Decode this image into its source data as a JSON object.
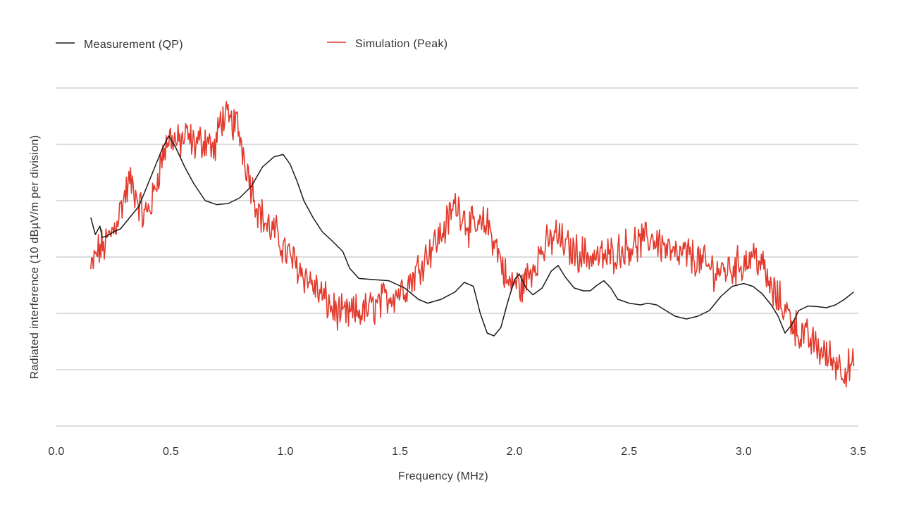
{
  "chart_data": {
    "type": "line",
    "xlabel": "Frequency (MHz)",
    "ylabel": "Radiated interference (10 dBµV/m per division)",
    "xlim": [
      0.0,
      3.5
    ],
    "x_ticks": [
      "0.0",
      "0.5",
      "1.0",
      "1.5",
      "2.0",
      "2.5",
      "3.0",
      "3.5"
    ],
    "ylim": [
      0,
      6
    ],
    "y_units": "divisions (10 dBµV/m each), measured from bottom gridline",
    "grid": "horizontal",
    "legend_position": "top-left",
    "series": [
      {
        "name": "Measurement (QP)",
        "color": "#1a1a1a",
        "style": "smooth",
        "points": [
          [
            0.15,
            3.7
          ],
          [
            0.17,
            3.4
          ],
          [
            0.19,
            3.55
          ],
          [
            0.2,
            3.35
          ],
          [
            0.22,
            3.37
          ],
          [
            0.25,
            3.45
          ],
          [
            0.28,
            3.5
          ],
          [
            0.32,
            3.7
          ],
          [
            0.36,
            3.9
          ],
          [
            0.4,
            4.3
          ],
          [
            0.43,
            4.6
          ],
          [
            0.46,
            4.9
          ],
          [
            0.49,
            5.15
          ],
          [
            0.52,
            4.95
          ],
          [
            0.56,
            4.6
          ],
          [
            0.6,
            4.3
          ],
          [
            0.65,
            4.0
          ],
          [
            0.7,
            3.93
          ],
          [
            0.75,
            3.95
          ],
          [
            0.8,
            4.05
          ],
          [
            0.85,
            4.25
          ],
          [
            0.9,
            4.6
          ],
          [
            0.95,
            4.78
          ],
          [
            0.99,
            4.82
          ],
          [
            1.02,
            4.65
          ],
          [
            1.05,
            4.35
          ],
          [
            1.08,
            4.0
          ],
          [
            1.12,
            3.7
          ],
          [
            1.16,
            3.45
          ],
          [
            1.2,
            3.3
          ],
          [
            1.25,
            3.1
          ],
          [
            1.28,
            2.8
          ],
          [
            1.32,
            2.62
          ],
          [
            1.38,
            2.6
          ],
          [
            1.45,
            2.58
          ],
          [
            1.52,
            2.45
          ],
          [
            1.58,
            2.25
          ],
          [
            1.62,
            2.18
          ],
          [
            1.68,
            2.25
          ],
          [
            1.74,
            2.38
          ],
          [
            1.78,
            2.55
          ],
          [
            1.82,
            2.48
          ],
          [
            1.85,
            2.0
          ],
          [
            1.88,
            1.65
          ],
          [
            1.91,
            1.6
          ],
          [
            1.94,
            1.75
          ],
          [
            1.97,
            2.2
          ],
          [
            2.0,
            2.6
          ],
          [
            2.02,
            2.7
          ],
          [
            2.05,
            2.45
          ],
          [
            2.08,
            2.33
          ],
          [
            2.12,
            2.45
          ],
          [
            2.16,
            2.75
          ],
          [
            2.19,
            2.85
          ],
          [
            2.22,
            2.65
          ],
          [
            2.26,
            2.45
          ],
          [
            2.3,
            2.4
          ],
          [
            2.33,
            2.4
          ],
          [
            2.36,
            2.5
          ],
          [
            2.39,
            2.58
          ],
          [
            2.42,
            2.45
          ],
          [
            2.45,
            2.25
          ],
          [
            2.5,
            2.18
          ],
          [
            2.55,
            2.15
          ],
          [
            2.58,
            2.18
          ],
          [
            2.62,
            2.15
          ],
          [
            2.66,
            2.05
          ],
          [
            2.7,
            1.95
          ],
          [
            2.75,
            1.9
          ],
          [
            2.8,
            1.95
          ],
          [
            2.85,
            2.05
          ],
          [
            2.9,
            2.3
          ],
          [
            2.95,
            2.48
          ],
          [
            3.0,
            2.53
          ],
          [
            3.04,
            2.48
          ],
          [
            3.08,
            2.35
          ],
          [
            3.12,
            2.15
          ],
          [
            3.15,
            1.95
          ],
          [
            3.18,
            1.65
          ],
          [
            3.21,
            1.8
          ],
          [
            3.24,
            2.05
          ],
          [
            3.28,
            2.13
          ],
          [
            3.32,
            2.12
          ],
          [
            3.36,
            2.1
          ],
          [
            3.4,
            2.15
          ],
          [
            3.44,
            2.25
          ],
          [
            3.48,
            2.38
          ]
        ]
      },
      {
        "name": "Simulation (Peak)",
        "color": "#e23b2e",
        "style": "noisy",
        "points": [
          [
            0.15,
            2.75
          ],
          [
            0.18,
            3.1
          ],
          [
            0.21,
            3.2
          ],
          [
            0.25,
            3.5
          ],
          [
            0.28,
            3.85
          ],
          [
            0.3,
            4.1
          ],
          [
            0.32,
            4.35
          ],
          [
            0.35,
            4.1
          ],
          [
            0.38,
            3.7
          ],
          [
            0.42,
            4.0
          ],
          [
            0.45,
            4.6
          ],
          [
            0.48,
            5.0
          ],
          [
            0.5,
            5.15
          ],
          [
            0.53,
            5.0
          ],
          [
            0.57,
            5.15
          ],
          [
            0.6,
            5.0
          ],
          [
            0.63,
            5.05
          ],
          [
            0.66,
            5.1
          ],
          [
            0.69,
            4.85
          ],
          [
            0.72,
            5.5
          ],
          [
            0.75,
            5.4
          ],
          [
            0.79,
            5.35
          ],
          [
            0.82,
            4.8
          ],
          [
            0.85,
            4.3
          ],
          [
            0.88,
            3.85
          ],
          [
            0.92,
            3.55
          ],
          [
            0.96,
            3.4
          ],
          [
            1.0,
            3.1
          ],
          [
            1.04,
            2.9
          ],
          [
            1.08,
            2.7
          ],
          [
            1.12,
            2.5
          ],
          [
            1.16,
            2.3
          ],
          [
            1.2,
            2.1
          ],
          [
            1.25,
            1.95
          ],
          [
            1.3,
            2.0
          ],
          [
            1.35,
            2.05
          ],
          [
            1.4,
            2.15
          ],
          [
            1.45,
            2.3
          ],
          [
            1.5,
            2.4
          ],
          [
            1.55,
            2.6
          ],
          [
            1.6,
            2.95
          ],
          [
            1.64,
            3.2
          ],
          [
            1.68,
            3.4
          ],
          [
            1.71,
            3.65
          ],
          [
            1.74,
            3.95
          ],
          [
            1.77,
            3.8
          ],
          [
            1.8,
            3.55
          ],
          [
            1.84,
            3.5
          ],
          [
            1.88,
            3.6
          ],
          [
            1.91,
            3.3
          ],
          [
            1.94,
            2.95
          ],
          [
            1.97,
            2.5
          ],
          [
            2.0,
            2.55
          ],
          [
            2.03,
            2.45
          ],
          [
            2.07,
            2.75
          ],
          [
            2.1,
            3.0
          ],
          [
            2.14,
            3.2
          ],
          [
            2.18,
            3.4
          ],
          [
            2.22,
            3.2
          ],
          [
            2.26,
            3.1
          ],
          [
            2.3,
            3.05
          ],
          [
            2.35,
            3.0
          ],
          [
            2.4,
            3.0
          ],
          [
            2.45,
            3.1
          ],
          [
            2.5,
            3.2
          ],
          [
            2.55,
            3.25
          ],
          [
            2.6,
            3.35
          ],
          [
            2.65,
            3.2
          ],
          [
            2.7,
            3.0
          ],
          [
            2.75,
            3.05
          ],
          [
            2.8,
            2.95
          ],
          [
            2.85,
            2.8
          ],
          [
            2.9,
            2.75
          ],
          [
            2.95,
            2.8
          ],
          [
            3.0,
            2.9
          ],
          [
            3.05,
            3.05
          ],
          [
            3.08,
            2.85
          ],
          [
            3.12,
            2.4
          ],
          [
            3.16,
            2.2
          ],
          [
            3.2,
            1.95
          ],
          [
            3.24,
            1.65
          ],
          [
            3.28,
            1.55
          ],
          [
            3.32,
            1.4
          ],
          [
            3.36,
            1.25
          ],
          [
            3.4,
            1.15
          ],
          [
            3.44,
            1.0
          ],
          [
            3.48,
            1.05
          ]
        ]
      }
    ]
  }
}
